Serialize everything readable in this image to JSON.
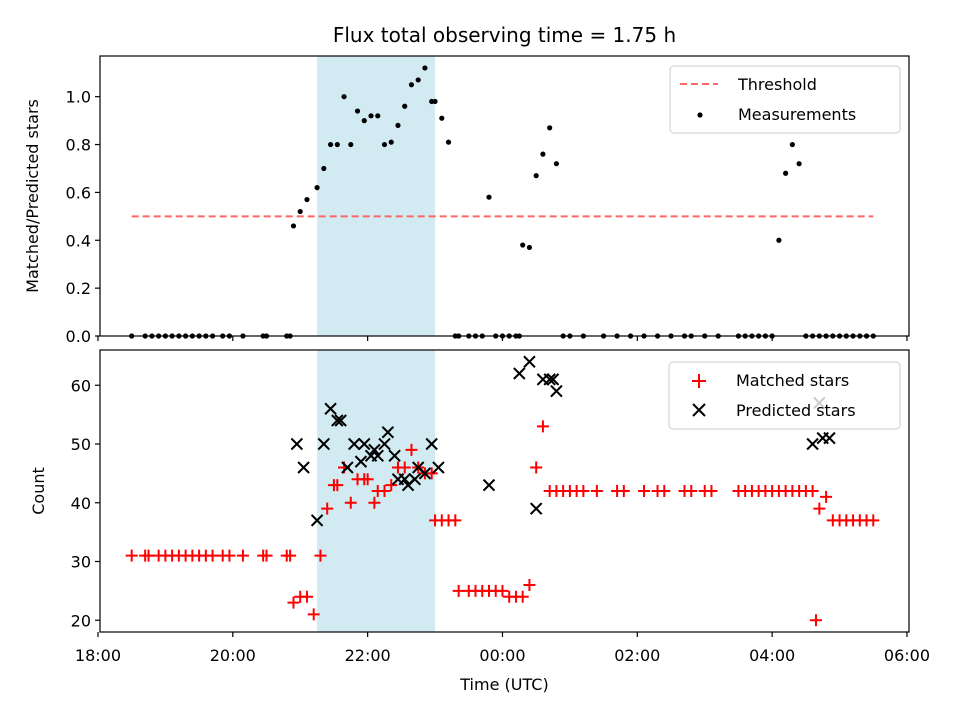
{
  "title": "Flux total observing time = 1.75 h",
  "colors": {
    "threshold": "#ff6666",
    "span": "#add8e6",
    "measurement": "#000000",
    "matched": "#ff0000",
    "predicted": "#000000"
  },
  "chart_data": [
    {
      "type": "scatter",
      "panel": "top",
      "title": "Flux total observing time = 1.75 h",
      "xlabel": "",
      "ylabel": "Matched/Predicted stars",
      "xlim": [
        18.03,
        30.03
      ],
      "ylim": [
        0,
        1.17
      ],
      "yticks": [
        0.0,
        0.2,
        0.4,
        0.6,
        0.8,
        1.0
      ],
      "ytick_labels": [
        "0.0",
        "0.2",
        "0.4",
        "0.6",
        "0.8",
        "1.0"
      ],
      "shaded_span": [
        21.25,
        23.0
      ],
      "legend_position": "upper right",
      "threshold": {
        "name": "Threshold",
        "y": 0.5,
        "x": [
          18.5,
          29.5
        ]
      },
      "series": [
        {
          "name": "Measurements",
          "x": [
            18.5,
            18.7,
            18.8,
            18.9,
            19.0,
            19.1,
            19.2,
            19.3,
            19.4,
            19.5,
            19.6,
            19.7,
            19.85,
            19.95,
            20.15,
            20.45,
            20.5,
            20.8,
            20.85,
            20.9,
            21.0,
            21.1,
            21.25,
            21.35,
            21.45,
            21.55,
            21.65,
            21.75,
            21.85,
            21.95,
            22.05,
            22.15,
            22.25,
            22.35,
            22.45,
            22.55,
            22.65,
            22.75,
            22.85,
            22.95,
            23.0,
            23.1,
            23.2,
            23.3,
            23.35,
            23.5,
            23.6,
            23.7,
            23.8,
            23.9,
            24.0,
            24.1,
            24.2,
            24.25,
            24.3,
            24.4,
            24.5,
            24.6,
            24.7,
            24.8,
            24.9,
            25.0,
            25.2,
            25.5,
            25.7,
            25.9,
            26.1,
            26.3,
            26.5,
            26.7,
            26.8,
            27.0,
            27.2,
            27.5,
            27.6,
            27.7,
            27.8,
            27.9,
            28.0,
            28.1,
            28.2,
            28.3,
            28.4,
            28.5,
            28.6,
            28.7,
            28.8,
            28.9,
            29.0,
            29.1,
            29.2,
            29.3,
            29.4,
            29.5
          ],
          "y": [
            0,
            0,
            0,
            0,
            0,
            0,
            0,
            0,
            0,
            0,
            0,
            0,
            0,
            0,
            0,
            0,
            0,
            0,
            0,
            0.46,
            0.52,
            0.57,
            0.62,
            0.7,
            0.8,
            0.8,
            1.0,
            0.8,
            0.94,
            0.9,
            0.92,
            0.92,
            0.8,
            0.81,
            0.88,
            0.96,
            1.05,
            1.07,
            1.12,
            0.98,
            0.98,
            0.91,
            0.81,
            0,
            0,
            0,
            0,
            0,
            0.58,
            0,
            0,
            0,
            0,
            0,
            0.38,
            0.37,
            0.67,
            0.76,
            0.87,
            0.72,
            0,
            0,
            0,
            0,
            0,
            0,
            0,
            0,
            0,
            0,
            0,
            0,
            0,
            0,
            0,
            0,
            0,
            0,
            0,
            0.4,
            0.68,
            0.8,
            0.72,
            0,
            0,
            0,
            0,
            0,
            0,
            0,
            0,
            0,
            0,
            0
          ]
        }
      ]
    },
    {
      "type": "scatter",
      "panel": "bottom",
      "title": "",
      "xlabel": "Time (UTC)",
      "ylabel": "Count",
      "xlim": [
        18.03,
        30.03
      ],
      "ylim": [
        18,
        66
      ],
      "yticks": [
        20,
        30,
        40,
        50,
        60
      ],
      "ytick_labels": [
        "20",
        "30",
        "40",
        "50",
        "60"
      ],
      "xticks": [
        18,
        20,
        22,
        24,
        26,
        28,
        30
      ],
      "xtick_labels": [
        "18:00",
        "20:00",
        "22:00",
        "00:00",
        "02:00",
        "04:00",
        "06:00"
      ],
      "shaded_span": [
        21.25,
        23.0
      ],
      "legend_position": "upper right",
      "series": [
        {
          "name": "Matched stars",
          "marker": "plus",
          "x": [
            18.5,
            18.7,
            18.75,
            18.9,
            19.0,
            19.1,
            19.2,
            19.3,
            19.4,
            19.5,
            19.6,
            19.7,
            19.85,
            19.95,
            20.15,
            20.45,
            20.5,
            20.8,
            20.85,
            20.9,
            21.0,
            21.1,
            21.2,
            21.3,
            21.4,
            21.5,
            21.55,
            21.65,
            21.75,
            21.85,
            21.95,
            22.0,
            22.1,
            22.15,
            22.25,
            22.35,
            22.45,
            22.55,
            22.65,
            22.75,
            22.85,
            22.95,
            23.0,
            23.1,
            23.2,
            23.3,
            23.35,
            23.5,
            23.6,
            23.7,
            23.8,
            23.9,
            24.0,
            24.1,
            24.2,
            24.3,
            24.4,
            24.5,
            24.6,
            24.7,
            24.8,
            24.9,
            25.0,
            25.1,
            25.2,
            25.4,
            25.7,
            25.8,
            26.1,
            26.3,
            26.4,
            26.7,
            26.8,
            27.0,
            27.1,
            27.5,
            27.6,
            27.7,
            27.8,
            27.9,
            28.0,
            28.1,
            28.2,
            28.3,
            28.4,
            28.5,
            28.6,
            28.65,
            28.7,
            28.8,
            28.9,
            29.0,
            29.1,
            29.2,
            29.3,
            29.4,
            29.5
          ],
          "y": [
            31,
            31,
            31,
            31,
            31,
            31,
            31,
            31,
            31,
            31,
            31,
            31,
            31,
            31,
            31,
            31,
            31,
            31,
            31,
            23,
            24,
            24,
            21,
            31,
            39,
            43,
            43,
            46,
            40,
            44,
            44,
            44,
            40,
            42,
            42,
            43,
            46,
            46,
            49,
            46,
            45,
            45,
            37,
            37,
            37,
            37,
            25,
            25,
            25,
            25,
            25,
            25,
            25,
            24,
            24,
            24,
            26,
            46,
            53,
            42,
            42,
            42,
            42,
            42,
            42,
            42,
            42,
            42,
            42,
            42,
            42,
            42,
            42,
            42,
            42,
            42,
            42,
            42,
            42,
            42,
            42,
            42,
            42,
            42,
            42,
            42,
            42,
            20,
            39,
            41,
            37,
            37,
            37,
            37,
            37,
            37,
            37
          ]
        },
        {
          "name": "Predicted stars",
          "marker": "x",
          "x": [
            20.95,
            21.05,
            21.25,
            21.35,
            21.45,
            21.55,
            21.6,
            21.7,
            21.8,
            21.9,
            21.95,
            22.05,
            22.1,
            22.15,
            22.25,
            22.3,
            22.4,
            22.45,
            22.55,
            22.6,
            22.7,
            22.75,
            22.85,
            22.95,
            23.05,
            23.8,
            24.25,
            24.4,
            24.5,
            24.6,
            24.7,
            24.75,
            24.8,
            28.6,
            28.7,
            28.75,
            28.85
          ],
          "y": [
            50,
            46,
            37,
            50,
            56,
            54,
            54,
            46,
            50,
            47,
            50,
            48,
            49,
            48,
            50,
            52,
            48,
            44,
            44,
            43,
            44,
            46,
            45,
            50,
            46,
            43,
            62,
            64,
            39,
            61,
            61,
            61,
            59,
            50,
            57,
            51,
            51
          ]
        }
      ]
    }
  ]
}
